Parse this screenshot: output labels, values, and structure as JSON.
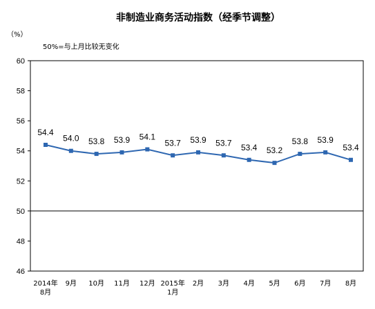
{
  "chart_data": {
    "type": "line",
    "title": "非制造业商务活动指数（经季节调整）",
    "unit_label": "（%）",
    "note": "50%=与上月比较无变化",
    "categories": [
      [
        "2014年",
        "8月"
      ],
      [
        "9月"
      ],
      [
        "10月"
      ],
      [
        "11月"
      ],
      [
        "12月"
      ],
      [
        "2015年",
        "1月"
      ],
      [
        "2月"
      ],
      [
        "3月"
      ],
      [
        "4月"
      ],
      [
        "5月"
      ],
      [
        "6月"
      ],
      [
        "7月"
      ],
      [
        "8月"
      ]
    ],
    "values": [
      54.4,
      54.0,
      53.8,
      53.9,
      54.1,
      53.7,
      53.9,
      53.7,
      53.4,
      53.2,
      53.8,
      53.9,
      53.4
    ],
    "data_labels": [
      "54.4",
      "54.0",
      "53.8",
      "53.9",
      "54.1",
      "53.7",
      "53.9",
      "53.7",
      "53.4",
      "53.2",
      "53.8",
      "53.9",
      "53.4"
    ],
    "ylim": [
      46,
      60
    ],
    "yticks": [
      60,
      58,
      56,
      54,
      52,
      50,
      48,
      46
    ],
    "reference_line": 50,
    "grid": false,
    "legend": "none",
    "series_color": "#2E67B1",
    "marker": "square"
  }
}
